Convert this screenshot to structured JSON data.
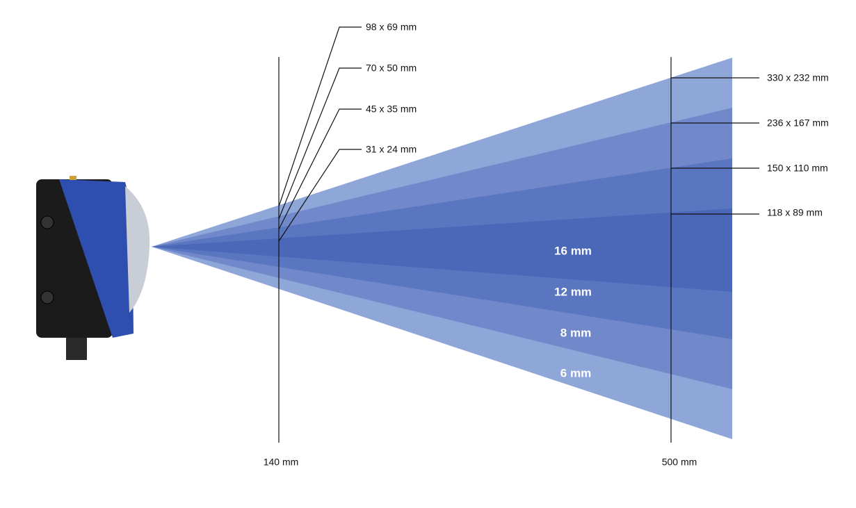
{
  "near_distance": "140 mm",
  "far_distance": "500 mm",
  "near_fields": [
    "98 x 69 mm",
    "70 x 50 mm",
    "45 x 35 mm",
    "31 x 24 mm"
  ],
  "far_fields": [
    "330 x 232 mm",
    "236 x 167 mm",
    "150 x 110 mm",
    "118 x 89 mm"
  ],
  "lenses": [
    "16 mm",
    "12 mm",
    "8 mm",
    "6 mm"
  ]
}
